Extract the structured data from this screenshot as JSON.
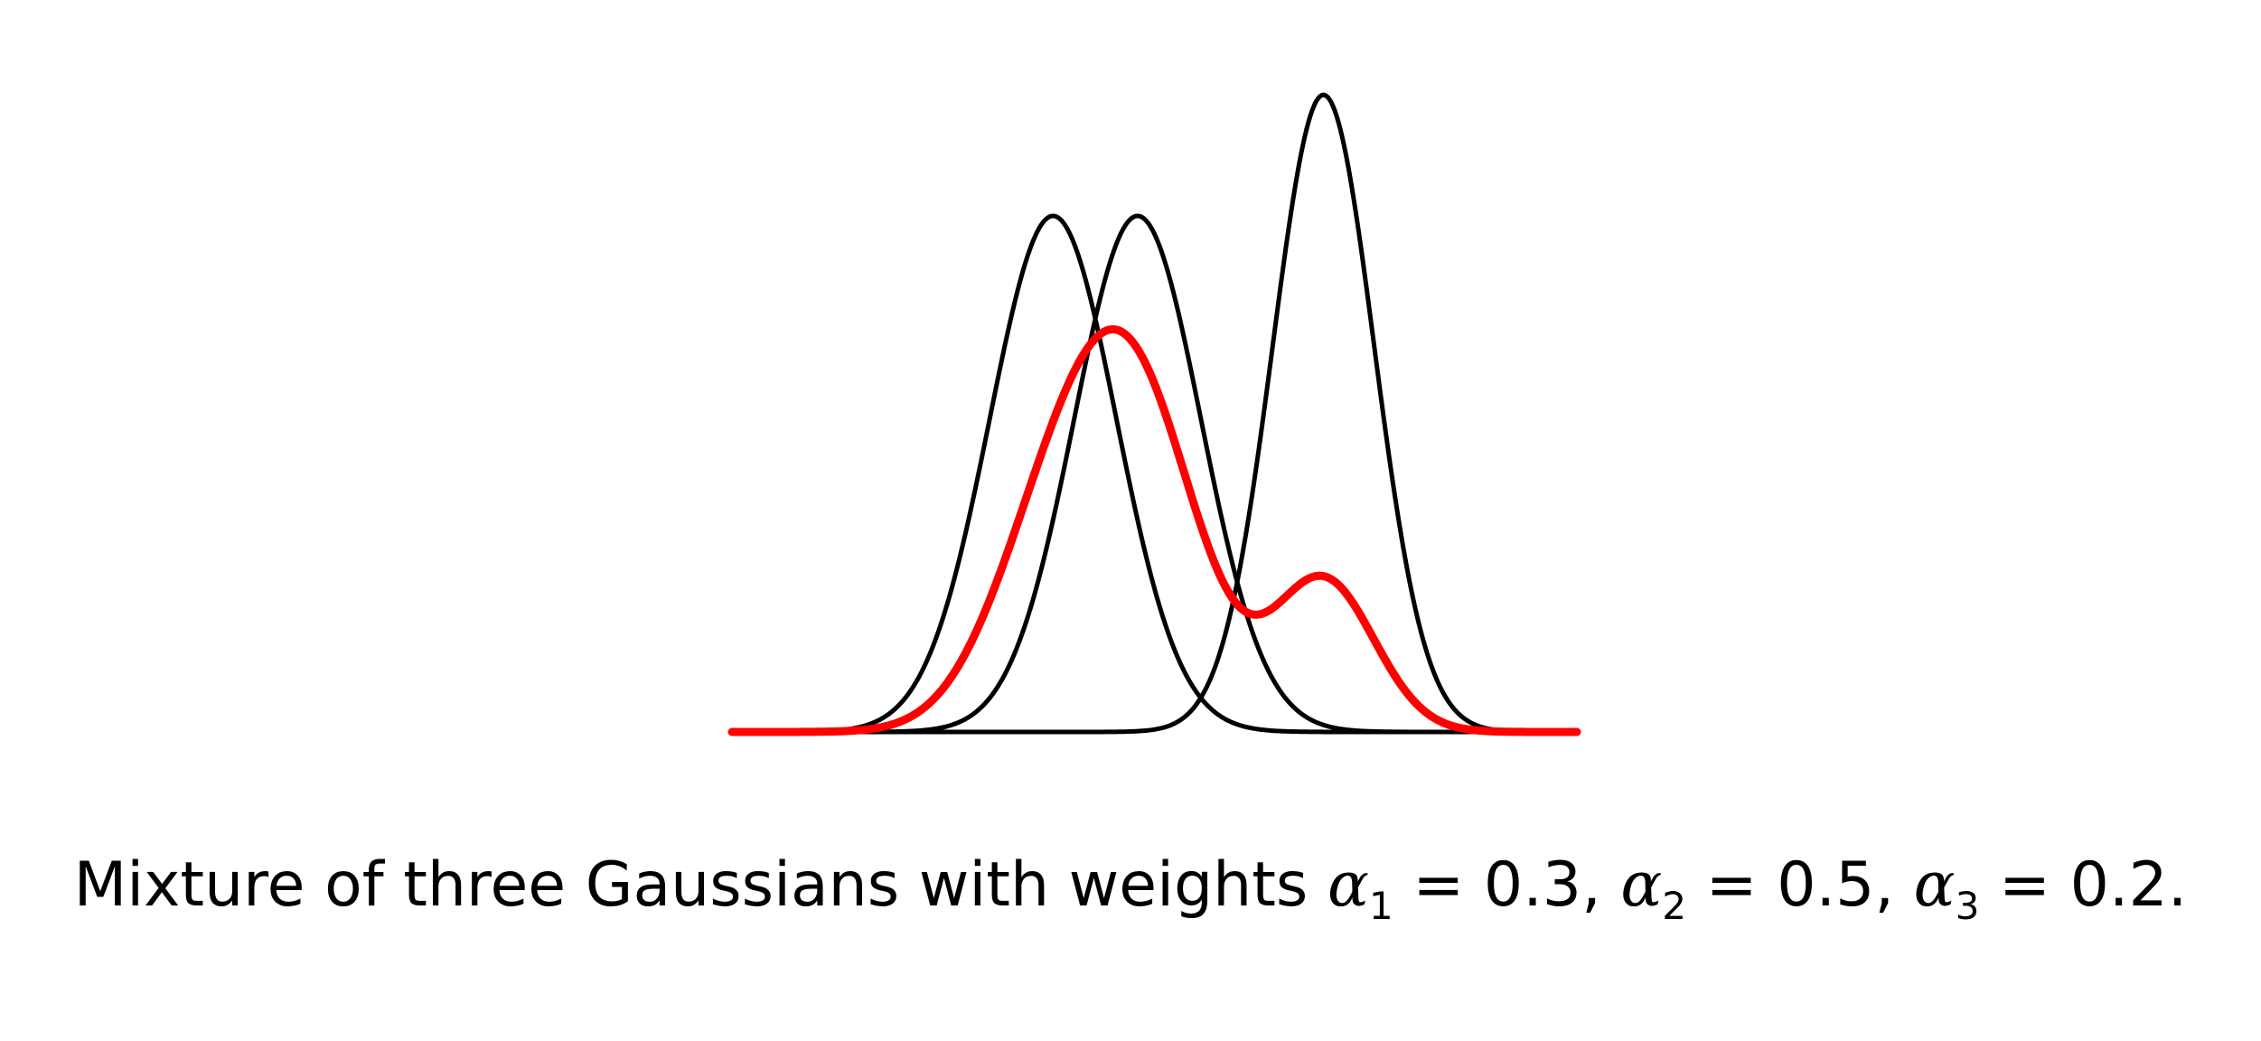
{
  "chart_data": {
    "type": "line",
    "title": "",
    "xlabel": "",
    "ylabel": "",
    "axes_visible": false,
    "grid": false,
    "legend": "none",
    "x_range": [
      -3.5,
      6.5
    ],
    "series": [
      {
        "role": "component",
        "color": "#000000",
        "mean": 0.3,
        "sd": 0.75,
        "peak_rel": 0.81
      },
      {
        "role": "component",
        "color": "#000000",
        "mean": 1.3,
        "sd": 0.75,
        "peak_rel": 0.81
      },
      {
        "role": "component",
        "color": "#000000",
        "mean": 3.5,
        "sd": 0.6,
        "peak_rel": 1.0
      },
      {
        "role": "mixture",
        "color": "#ff0000",
        "weights": [
          0.3,
          0.5,
          0.2
        ]
      }
    ]
  },
  "caption": {
    "prefix": "Mixture of three Gaussians with weights ",
    "alpha_symbol": "α",
    "sub1": "1",
    "eq1": " = 0.3, ",
    "sub2": "2",
    "eq2": " = 0.5, ",
    "sub3": "3",
    "eq3": " = 0.2."
  }
}
